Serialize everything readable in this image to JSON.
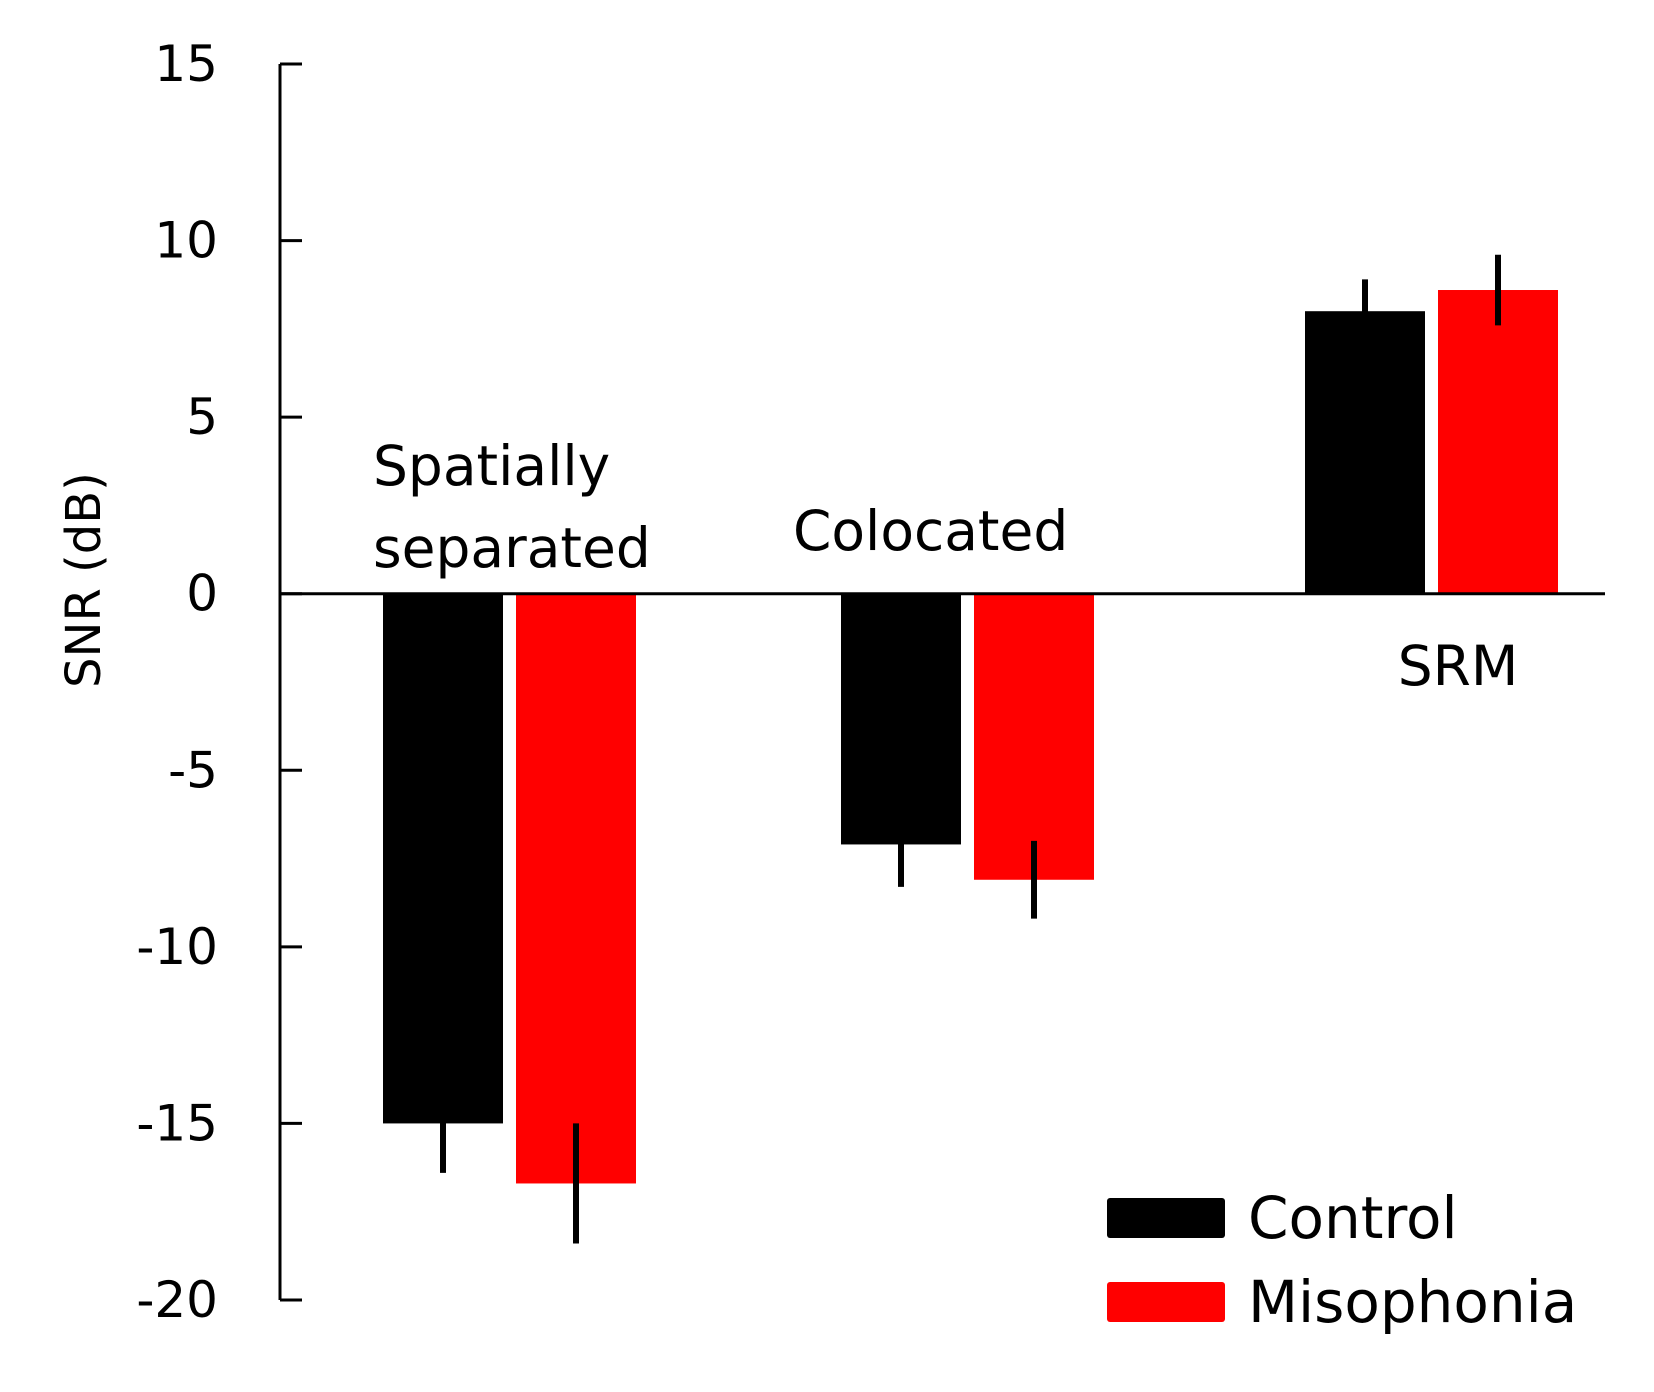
{
  "chart_data": {
    "type": "bar",
    "title": "",
    "xlabel": "",
    "ylabel": "SNR (dB)",
    "ylim": [
      -20,
      15
    ],
    "yticks": [
      15,
      10,
      5,
      0,
      -5,
      -10,
      -15,
      -20
    ],
    "ytick_labels": [
      "15",
      "10",
      "5",
      "0",
      "-5",
      "-10",
      "-15",
      "-20"
    ],
    "grid": false,
    "legend_position": "bottom-right",
    "categories": [
      "Spatially separated",
      "Colocated",
      "SRM"
    ],
    "category_label_lines": [
      [
        "Spatially",
        "separated"
      ],
      [
        "Colocated"
      ],
      [
        "SRM"
      ]
    ],
    "series": [
      {
        "name": "Control",
        "color": "#000000",
        "values": [
          -15.0,
          -7.1,
          8.0
        ],
        "errors": [
          1.4,
          1.2,
          0.9
        ]
      },
      {
        "name": "Misophonia",
        "color": "#ff0000",
        "values": [
          -16.7,
          -8.1,
          8.6
        ],
        "errors": [
          1.7,
          1.1,
          1.0
        ]
      }
    ]
  }
}
